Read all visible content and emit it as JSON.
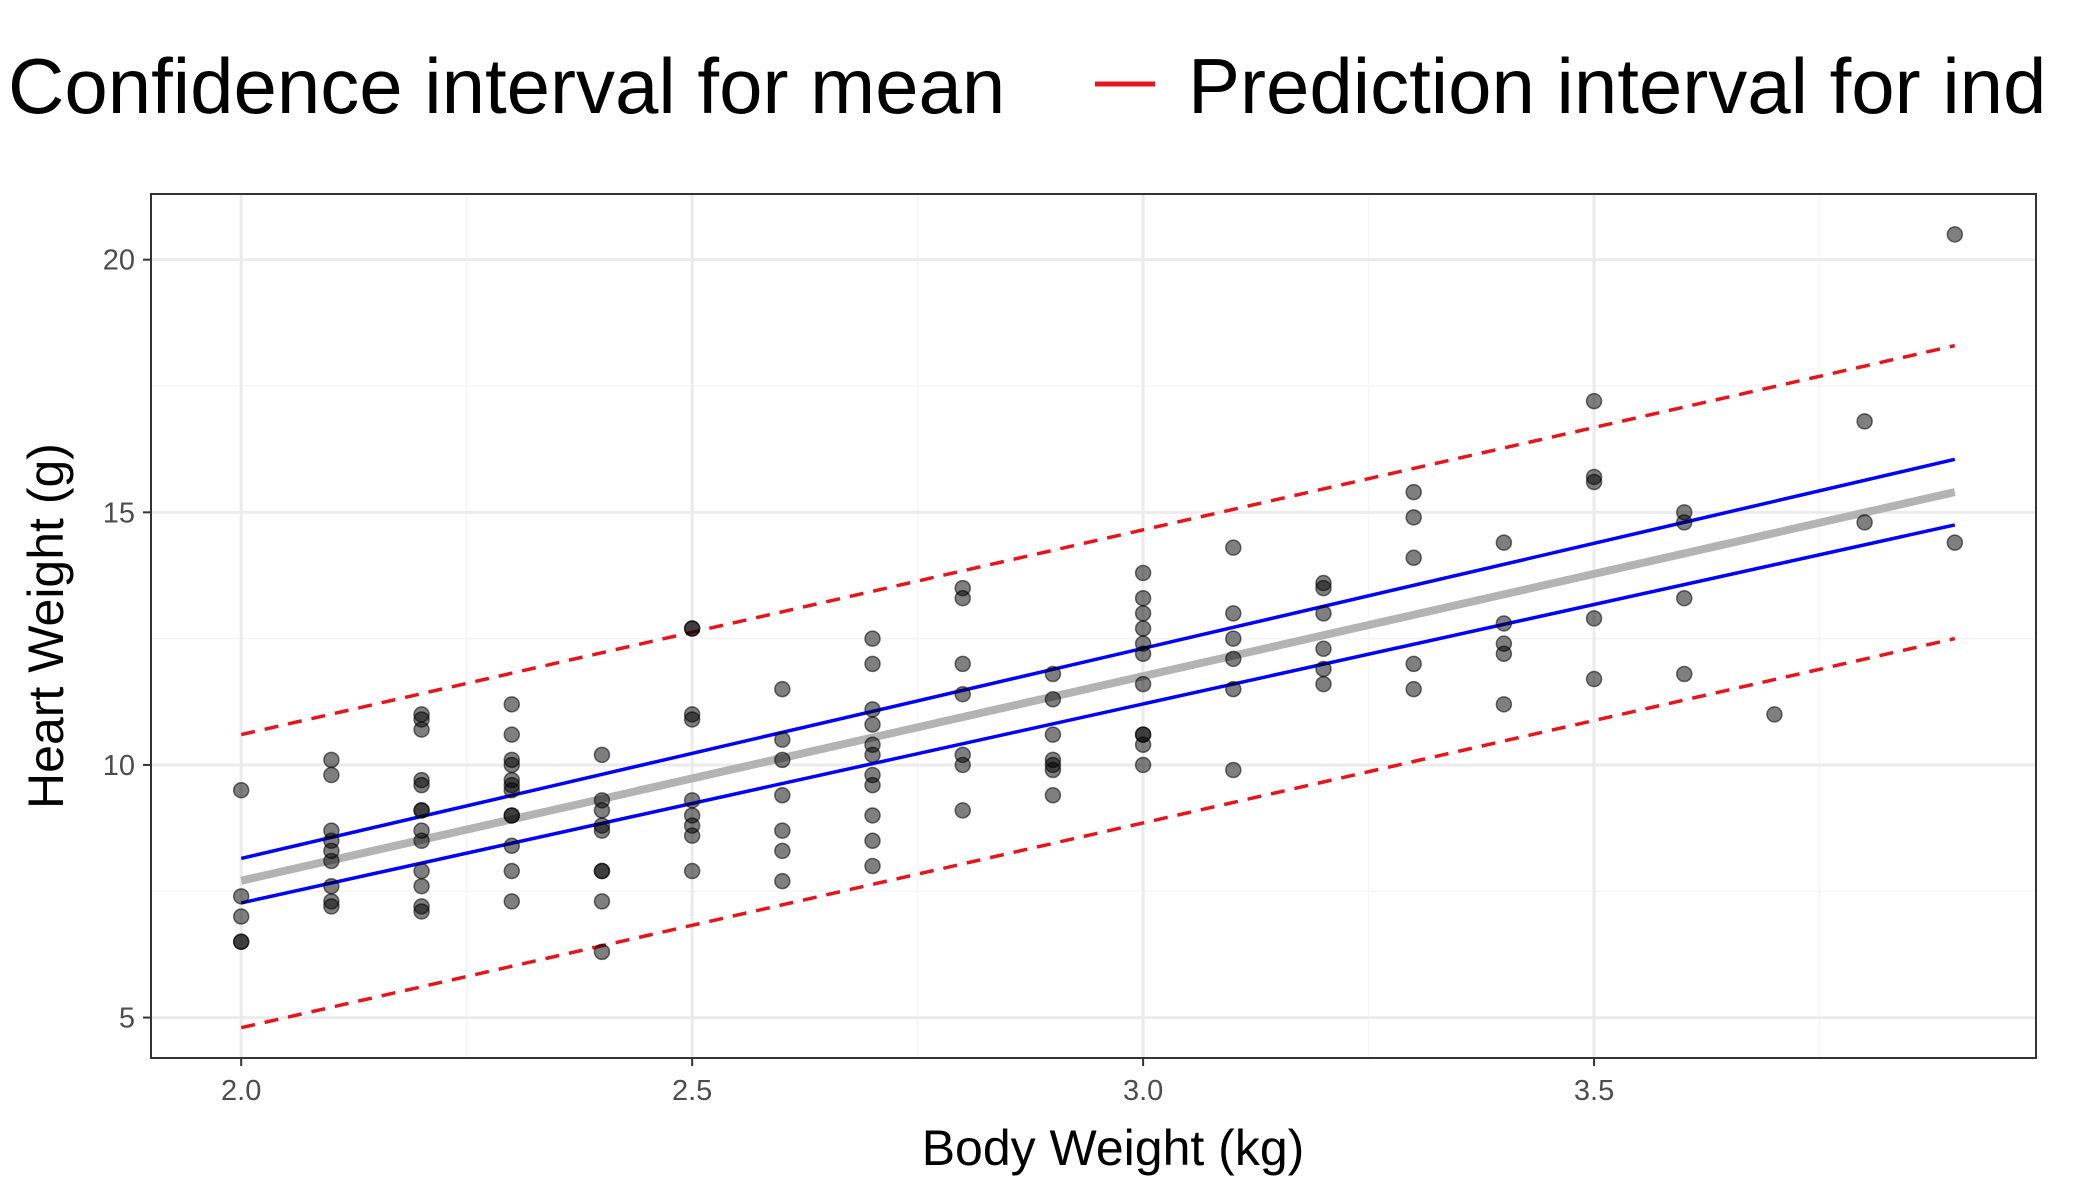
{
  "legend": {
    "items": [
      {
        "label": "Confidence interval for mean",
        "color": "#0000ff"
      },
      {
        "label": "Prediction interval for ind",
        "color": "#e8141b"
      }
    ]
  },
  "colors": {
    "points": "#000000",
    "fit_line": "#b3b3b3",
    "confidence": "#0000ff",
    "prediction": "#e8141b",
    "grid_major": "#ebebeb",
    "grid_minor": "#f5f5f5",
    "panel_border": "#333333"
  },
  "chart_data": {
    "type": "scatter",
    "xlabel": "Body Weight (kg)",
    "ylabel": "Heart Weight (g)",
    "xlim": [
      1.9,
      3.99
    ],
    "ylim": [
      4.2,
      21.3
    ],
    "x_ticks": [
      2.0,
      2.5,
      3.0,
      3.5
    ],
    "x_tick_labels": [
      "2.0",
      "2.5",
      "3.0",
      "3.5"
    ],
    "y_ticks": [
      5,
      10,
      15,
      20
    ],
    "y_tick_labels": [
      "5",
      "10",
      "15",
      "20"
    ],
    "x_minor_ticks": [
      2.25,
      2.75,
      3.25,
      3.75
    ],
    "y_minor_ticks": [
      7.5,
      12.5,
      17.5
    ],
    "grid": true,
    "legend_position": "top",
    "series": [
      {
        "kind": "points",
        "points": [
          [
            2.0,
            9.5
          ],
          [
            2.0,
            7.4
          ],
          [
            2.0,
            7.0
          ],
          [
            2.0,
            6.5
          ],
          [
            2.0,
            6.5
          ],
          [
            2.1,
            10.1
          ],
          [
            2.1,
            9.8
          ],
          [
            2.1,
            8.7
          ],
          [
            2.1,
            8.5
          ],
          [
            2.1,
            8.3
          ],
          [
            2.1,
            8.1
          ],
          [
            2.1,
            7.6
          ],
          [
            2.1,
            7.3
          ],
          [
            2.1,
            7.2
          ],
          [
            2.2,
            11.0
          ],
          [
            2.2,
            10.9
          ],
          [
            2.2,
            10.7
          ],
          [
            2.2,
            9.7
          ],
          [
            2.2,
            9.6
          ],
          [
            2.2,
            9.1
          ],
          [
            2.2,
            9.1
          ],
          [
            2.2,
            8.7
          ],
          [
            2.2,
            8.5
          ],
          [
            2.2,
            7.9
          ],
          [
            2.2,
            7.6
          ],
          [
            2.2,
            7.2
          ],
          [
            2.2,
            7.1
          ],
          [
            2.3,
            11.2
          ],
          [
            2.3,
            10.6
          ],
          [
            2.3,
            10.1
          ],
          [
            2.3,
            10.0
          ],
          [
            2.3,
            9.7
          ],
          [
            2.3,
            9.6
          ],
          [
            2.3,
            9.5
          ],
          [
            2.3,
            9.0
          ],
          [
            2.3,
            9.0
          ],
          [
            2.3,
            8.4
          ],
          [
            2.3,
            7.9
          ],
          [
            2.3,
            7.3
          ],
          [
            2.4,
            10.2
          ],
          [
            2.4,
            9.3
          ],
          [
            2.4,
            9.1
          ],
          [
            2.4,
            8.8
          ],
          [
            2.4,
            8.7
          ],
          [
            2.4,
            7.9
          ],
          [
            2.4,
            7.9
          ],
          [
            2.4,
            7.3
          ],
          [
            2.4,
            6.3
          ],
          [
            2.5,
            12.7
          ],
          [
            2.5,
            12.7
          ],
          [
            2.5,
            11.0
          ],
          [
            2.5,
            10.9
          ],
          [
            2.5,
            9.3
          ],
          [
            2.5,
            9.0
          ],
          [
            2.5,
            8.8
          ],
          [
            2.5,
            8.6
          ],
          [
            2.5,
            7.9
          ],
          [
            2.6,
            11.5
          ],
          [
            2.6,
            10.5
          ],
          [
            2.6,
            10.1
          ],
          [
            2.6,
            9.4
          ],
          [
            2.6,
            8.7
          ],
          [
            2.6,
            8.3
          ],
          [
            2.6,
            7.7
          ],
          [
            2.7,
            12.5
          ],
          [
            2.7,
            12.0
          ],
          [
            2.7,
            11.1
          ],
          [
            2.7,
            10.8
          ],
          [
            2.7,
            10.4
          ],
          [
            2.7,
            10.2
          ],
          [
            2.7,
            9.8
          ],
          [
            2.7,
            9.6
          ],
          [
            2.7,
            9.0
          ],
          [
            2.7,
            8.5
          ],
          [
            2.7,
            8.0
          ],
          [
            2.8,
            13.5
          ],
          [
            2.8,
            13.3
          ],
          [
            2.8,
            12.0
          ],
          [
            2.8,
            11.4
          ],
          [
            2.8,
            10.2
          ],
          [
            2.8,
            10.0
          ],
          [
            2.8,
            9.1
          ],
          [
            2.9,
            11.8
          ],
          [
            2.9,
            11.3
          ],
          [
            2.9,
            10.6
          ],
          [
            2.9,
            10.1
          ],
          [
            2.9,
            10.0
          ],
          [
            2.9,
            9.9
          ],
          [
            2.9,
            9.4
          ],
          [
            3.0,
            13.8
          ],
          [
            3.0,
            13.3
          ],
          [
            3.0,
            13.0
          ],
          [
            3.0,
            12.7
          ],
          [
            3.0,
            12.4
          ],
          [
            3.0,
            12.2
          ],
          [
            3.0,
            11.6
          ],
          [
            3.0,
            10.6
          ],
          [
            3.0,
            10.6
          ],
          [
            3.0,
            10.4
          ],
          [
            3.0,
            10.0
          ],
          [
            3.1,
            14.3
          ],
          [
            3.1,
            13.0
          ],
          [
            3.1,
            12.5
          ],
          [
            3.1,
            12.1
          ],
          [
            3.1,
            11.5
          ],
          [
            3.1,
            9.9
          ],
          [
            3.2,
            13.6
          ],
          [
            3.2,
            13.5
          ],
          [
            3.2,
            13.0
          ],
          [
            3.2,
            12.3
          ],
          [
            3.2,
            11.9
          ],
          [
            3.2,
            11.6
          ],
          [
            3.3,
            15.4
          ],
          [
            3.3,
            14.9
          ],
          [
            3.3,
            14.1
          ],
          [
            3.3,
            12.0
          ],
          [
            3.3,
            11.5
          ],
          [
            3.4,
            14.4
          ],
          [
            3.4,
            12.8
          ],
          [
            3.4,
            12.4
          ],
          [
            3.4,
            12.2
          ],
          [
            3.4,
            11.2
          ],
          [
            3.5,
            17.2
          ],
          [
            3.5,
            15.7
          ],
          [
            3.5,
            15.6
          ],
          [
            3.5,
            12.9
          ],
          [
            3.5,
            11.7
          ],
          [
            3.6,
            15.0
          ],
          [
            3.6,
            14.8
          ],
          [
            3.6,
            13.3
          ],
          [
            3.6,
            11.8
          ],
          [
            3.7,
            11.0
          ],
          [
            3.8,
            16.8
          ],
          [
            3.8,
            14.8
          ],
          [
            3.9,
            20.5
          ],
          [
            3.9,
            14.4
          ]
        ]
      },
      {
        "kind": "fit",
        "x": [
          2.0,
          3.9
        ],
        "y": [
          7.71,
          15.4
        ]
      },
      {
        "kind": "confidence_upper",
        "x": [
          2.0,
          3.9
        ],
        "y": [
          8.15,
          16.05
        ]
      },
      {
        "kind": "confidence_lower",
        "x": [
          2.0,
          3.9
        ],
        "y": [
          7.27,
          14.75
        ]
      },
      {
        "kind": "prediction_upper",
        "x": [
          2.0,
          3.9
        ],
        "y": [
          10.6,
          18.3
        ]
      },
      {
        "kind": "prediction_lower",
        "x": [
          2.0,
          3.9
        ],
        "y": [
          4.8,
          12.5
        ]
      }
    ]
  }
}
